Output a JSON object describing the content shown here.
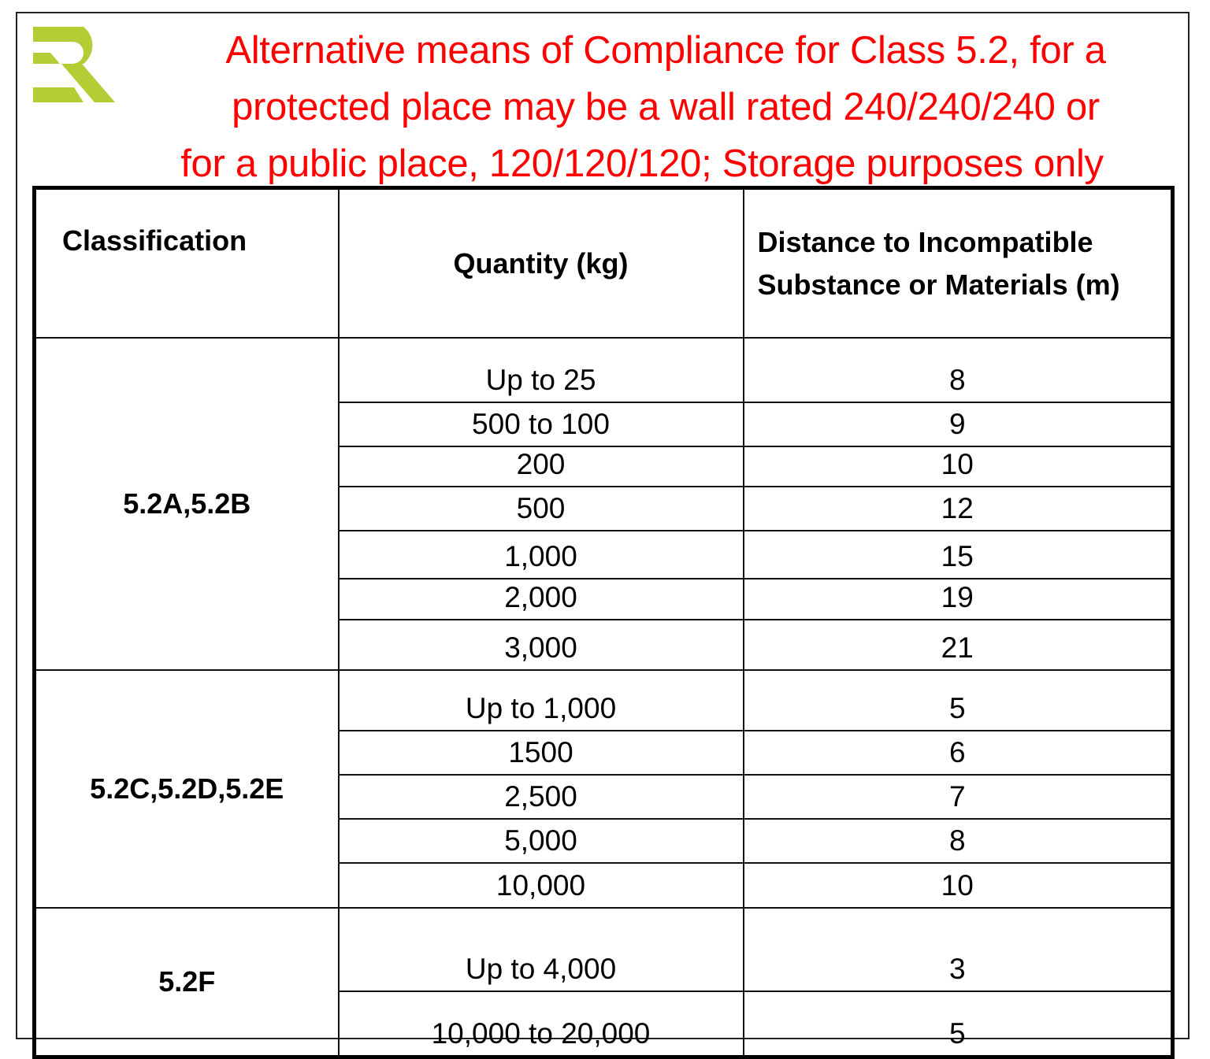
{
  "logo": {
    "text": "ER",
    "color": "#b5cc34"
  },
  "title": {
    "lines": [
      "Alternative means of Compliance for Class 5.2,  for a",
      "protected place may be a wall rated 240/240/240 or",
      "for a public place, 120/120/120; Storage purposes only"
    ],
    "color": "#ff0000"
  },
  "table": {
    "headers": [
      "Classification",
      "Quantity (kg)",
      "Distance to Incompatible",
      "Substance or Materials (m)"
    ],
    "groups": [
      {
        "classification": "5.2A,5.2B",
        "rows": [
          [
            "Up to 25",
            "8"
          ],
          [
            "500 to 100",
            "9"
          ],
          [
            "200",
            "10"
          ],
          [
            "500",
            "12"
          ],
          [
            "1,000",
            "15"
          ],
          [
            "2,000",
            "19"
          ],
          [
            "3,000",
            "21"
          ]
        ]
      },
      {
        "classification": "5.2C,5.2D,5.2E",
        "rows": [
          [
            "Up to 1,000",
            "5"
          ],
          [
            "1500",
            "6"
          ],
          [
            "2,500",
            "7"
          ],
          [
            "5,000",
            "8"
          ],
          [
            "10,000",
            "10"
          ]
        ]
      },
      {
        "classification": "5.2F",
        "rows": [
          [
            "Up to 4,000",
            "3"
          ],
          [
            "10,000 to 20,000",
            "5"
          ]
        ]
      }
    ]
  }
}
